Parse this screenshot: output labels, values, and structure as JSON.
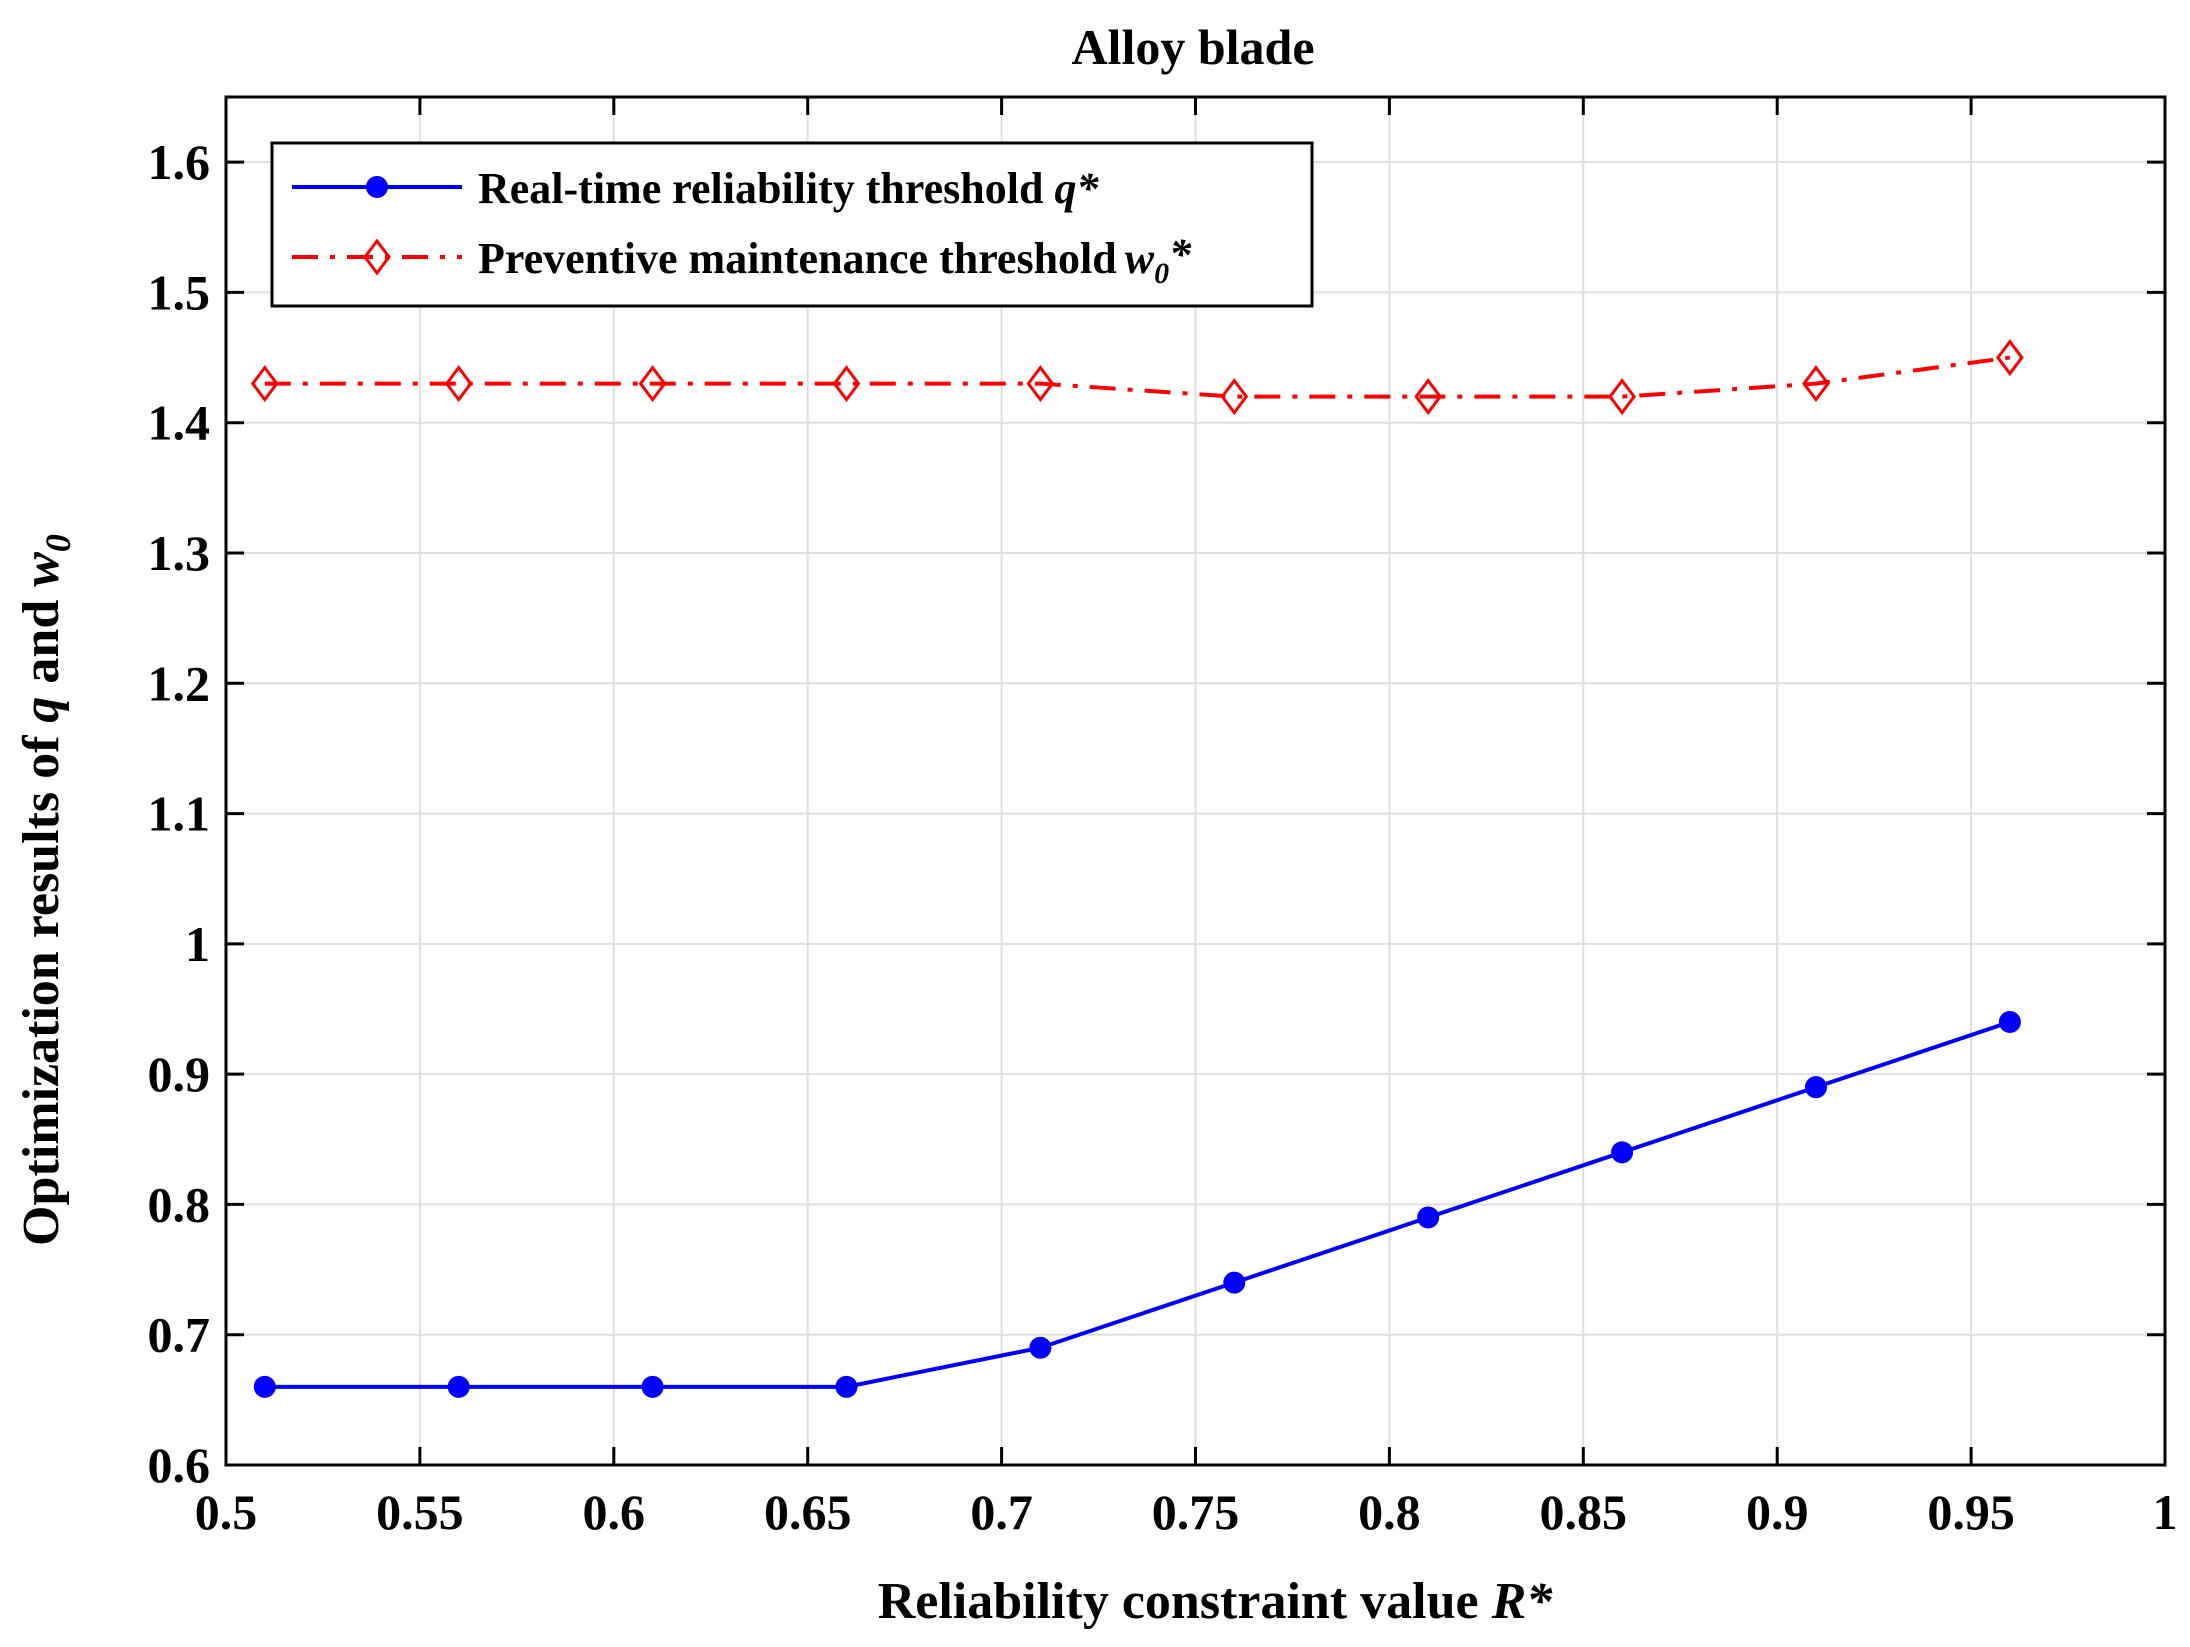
{
  "chart_data": {
    "type": "line",
    "title": "Alloy blade",
    "xlabel": {
      "text": "Reliability constraint value ",
      "var": "R*"
    },
    "ylabel": {
      "text": "Optimization results of ",
      "var1": "q",
      "mid": " and ",
      "var2": "w",
      "sub": "0"
    },
    "xlim": [
      0.5,
      1
    ],
    "ylim": [
      0.6,
      1.65
    ],
    "xticks": [
      0.5,
      0.55,
      0.6,
      0.65,
      0.7,
      0.75,
      0.8,
      0.85,
      0.9,
      0.95,
      1
    ],
    "xtick_labels": [
      "0.5",
      "0.55",
      "0.6",
      "0.65",
      "0.7",
      "0.75",
      "0.8",
      "0.85",
      "0.9",
      "0.95",
      "1"
    ],
    "yticks": [
      0.6,
      0.7,
      0.8,
      0.9,
      1.0,
      1.1,
      1.2,
      1.3,
      1.4,
      1.5,
      1.6
    ],
    "ytick_labels": [
      "0.6",
      "0.7",
      "0.8",
      "0.9",
      "1",
      "1.1",
      "1.2",
      "1.3",
      "1.4",
      "1.5",
      "1.6"
    ],
    "grid": true,
    "legend_position": "top-left",
    "x": [
      0.51,
      0.56,
      0.61,
      0.66,
      0.71,
      0.76,
      0.81,
      0.86,
      0.91,
      0.96
    ],
    "series": [
      {
        "name": "Real-time reliability threshold ",
        "name_var": "q*",
        "color": "#0000ff",
        "marker": "circle",
        "line": "solid",
        "values": [
          0.66,
          0.66,
          0.66,
          0.66,
          0.69,
          0.74,
          0.79,
          0.84,
          0.89,
          0.94
        ]
      },
      {
        "name": "Preventive maintenance threshold",
        "name_var": "w",
        "name_sub": "0",
        "name_suffix": "*",
        "color": "#ff0000",
        "marker": "diamond",
        "line": "dashdot",
        "values": [
          1.43,
          1.43,
          1.43,
          1.43,
          1.43,
          1.42,
          1.42,
          1.42,
          1.43,
          1.45
        ]
      }
    ]
  }
}
